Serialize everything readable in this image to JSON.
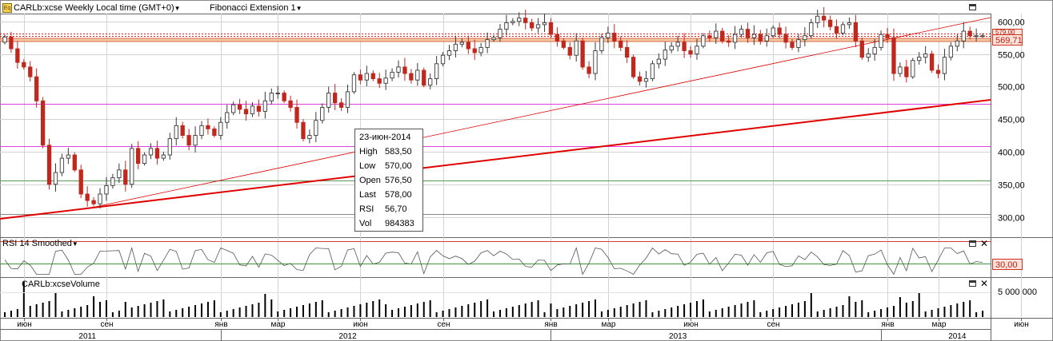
{
  "header": {
    "icon": "eq-icon",
    "icon_text": "Eq",
    "symbol_title": "CARLb:xcse Weekly Local time (GMT+0)",
    "study_title": "Fibonacci Extension 1"
  },
  "rsi_panel": {
    "title": "RSI 14 Smoothed",
    "level_tag": "30,00"
  },
  "volume_panel": {
    "title": "CARLb:xcseVolume",
    "axis_label": "5 000 000"
  },
  "last_price_tag": "569,71",
  "hidden_price_tag": "579,00",
  "tooltip": {
    "date": "23-июн-2014",
    "rows": [
      {
        "label": "High",
        "value": "583,50"
      },
      {
        "label": "Low",
        "value": "570,00"
      },
      {
        "label": "Open",
        "value": "576,50"
      },
      {
        "label": "Last",
        "value": "578,00"
      },
      {
        "label": "RSI",
        "value": "56,70"
      },
      {
        "label": "Vol",
        "value": "984383"
      }
    ]
  },
  "colors": {
    "up": "#3a3a3a",
    "down": "#c0281e",
    "grid": "#d2d2d2",
    "trend": "#e00000",
    "fib_pink": "#e040e0",
    "fib_green": "#5a9a5a",
    "rsi_line": "#555555"
  },
  "chart_data": {
    "type": "candlestick",
    "title": "CARLb:xcse Weekly",
    "y_ticks": [
      "600,00",
      "550,00",
      "500,00",
      "450,00",
      "400,00",
      "350,00",
      "300,00"
    ],
    "y_tick_values": [
      600,
      550,
      500,
      450,
      400,
      350,
      300
    ],
    "ylim": [
      270,
      612
    ],
    "month_labels": [
      {
        "label": "июн",
        "week": 3
      },
      {
        "label": "сен",
        "week": 16
      },
      {
        "label": "янв",
        "week": 34
      },
      {
        "label": "мар",
        "week": 43
      },
      {
        "label": "июн",
        "week": 56
      },
      {
        "label": "сен",
        "week": 69
      },
      {
        "label": "янв",
        "week": 86
      },
      {
        "label": "мар",
        "week": 95
      },
      {
        "label": "июн",
        "week": 108
      },
      {
        "label": "сен",
        "week": 121
      },
      {
        "label": "янв",
        "week": 139
      },
      {
        "label": "мар",
        "week": 147
      },
      {
        "label": "июн",
        "week": 160
      }
    ],
    "year_labels": [
      {
        "label": "2011",
        "week": 13
      },
      {
        "label": "2012",
        "week": 54
      },
      {
        "label": "2013",
        "week": 106
      },
      {
        "label": "2014",
        "week": 150
      }
    ],
    "closes": [
      576,
      558,
      537,
      530,
      515,
      478,
      410,
      350,
      368,
      390,
      395,
      372,
      335,
      325,
      320,
      335,
      348,
      360,
      372,
      350,
      405,
      382,
      395,
      405,
      390,
      395,
      420,
      440,
      425,
      410,
      425,
      440,
      435,
      425,
      445,
      460,
      472,
      465,
      458,
      470,
      462,
      478,
      490,
      490,
      478,
      468,
      445,
      420,
      425,
      448,
      468,
      490,
      475,
      468,
      492,
      518,
      510,
      520,
      512,
      505,
      513,
      522,
      530,
      520,
      510,
      525,
      502,
      512,
      535,
      548,
      555,
      565,
      568,
      558,
      552,
      560,
      572,
      575,
      588,
      598,
      600,
      605,
      598,
      590,
      595,
      598,
      580,
      570,
      560,
      548,
      570,
      530,
      520,
      555,
      575,
      582,
      570,
      560,
      545,
      515,
      508,
      512,
      535,
      542,
      556,
      562,
      568,
      555,
      550,
      562,
      578,
      575,
      585,
      570,
      568,
      580,
      588,
      575,
      580,
      570,
      578,
      590,
      580,
      568,
      560,
      572,
      578,
      598,
      608,
      602,
      592,
      582,
      595,
      598,
      570,
      545,
      550,
      560,
      580,
      575,
      520,
      530,
      515,
      540,
      545,
      550,
      525,
      520,
      545,
      562,
      570,
      585,
      578,
      578,
      578
    ]
  }
}
